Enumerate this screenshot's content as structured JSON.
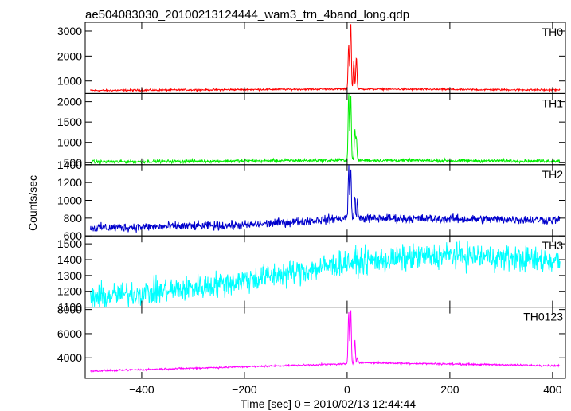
{
  "title": "ae504083030_20100213124444_wam3_trn_4band_long.qdp",
  "xlabel": "Time [sec] 0 = 2010/02/13 12:44:44",
  "ylabel": "Counts/sec",
  "chart_data": {
    "type": "line",
    "title": "ae504083030_20100213124444_wam3_trn_4band_long.qdp",
    "xlabel": "Time [sec] 0 = 2010/02/13 12:44:44",
    "ylabel": "Counts/sec",
    "xlim": [
      -510,
      425
    ],
    "xticks": [
      -400,
      -200,
      0,
      200,
      400
    ],
    "x_range": [
      -500,
      415
    ],
    "panels": [
      {
        "name": "TH0",
        "color": "#ff0000",
        "ylim": [
          500,
          3350
        ],
        "yticks": [
          1000,
          2000,
          3000
        ],
        "shape": {
          "baseline": [
            [
              -500,
              620
            ],
            [
              0,
              680
            ],
            [
              415,
              640
            ]
          ],
          "noise": 40,
          "peaks": [
            [
              3,
              2500
            ],
            [
              7,
              3350
            ],
            [
              13,
              1800
            ],
            [
              18,
              2000
            ]
          ]
        }
      },
      {
        "name": "TH1",
        "color": "#00ee00",
        "ylim": [
          450,
          2200
        ],
        "yticks": [
          500,
          1000,
          1500,
          2000
        ],
        "shape": {
          "baseline": [
            [
              -500,
              520
            ],
            [
              0,
              560
            ],
            [
              415,
              540
            ]
          ],
          "noise": 45,
          "peaks": [
            [
              3,
              2200
            ],
            [
              7,
              2200
            ],
            [
              15,
              1300
            ],
            [
              18,
              1100
            ]
          ]
        }
      },
      {
        "name": "TH2",
        "color": "#0000cc",
        "ylim": [
          600,
          1400
        ],
        "yticks": [
          600,
          800,
          1000,
          1200,
          1400
        ],
        "shape": {
          "baseline": [
            [
              -500,
              690
            ],
            [
              -200,
              720
            ],
            [
              0,
              800
            ],
            [
              200,
              790
            ],
            [
              415,
              780
            ]
          ],
          "noise": 55,
          "peaks": [
            [
              3,
              1380
            ],
            [
              7,
              1350
            ],
            [
              15,
              1050
            ],
            [
              20,
              980
            ]
          ]
        }
      },
      {
        "name": "TH3",
        "color": "#00ffff",
        "ylim": [
          1100,
          1550
        ],
        "yticks": [
          1100,
          1200,
          1300,
          1400,
          1500
        ],
        "shape": {
          "baseline": [
            [
              -500,
              1160
            ],
            [
              -300,
              1220
            ],
            [
              -100,
              1320
            ],
            [
              0,
              1380
            ],
            [
              200,
              1430
            ],
            [
              415,
              1390
            ]
          ],
          "noise": 90,
          "peaks": []
        }
      },
      {
        "name": "TH0123",
        "color": "#ff00ff",
        "ylim": [
          2300,
          8200
        ],
        "yticks": [
          4000,
          6000,
          8000
        ],
        "shape": {
          "baseline": [
            [
              -500,
              2900
            ],
            [
              0,
              3500
            ],
            [
              30,
              3600
            ],
            [
              415,
              3350
            ]
          ],
          "noise": 80,
          "peaks": [
            [
              3,
              7800
            ],
            [
              7,
              8000
            ],
            [
              15,
              5500
            ],
            [
              20,
              4000
            ]
          ]
        }
      }
    ]
  }
}
